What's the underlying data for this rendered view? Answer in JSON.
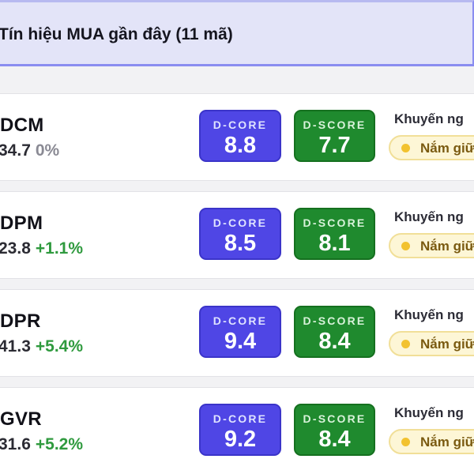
{
  "header": {
    "title": "Tín hiệu MUA gần đây (11 mã)"
  },
  "labels": {
    "dcore": "D-CORE",
    "dscore": "D-SCORE",
    "recommendation": "Khuyến ng",
    "hold": "Nắm giữ"
  },
  "stocks": [
    {
      "ticker": "DCM",
      "price": "34.7",
      "change": "0%",
      "change_type": "neutral",
      "dcore": "8.8",
      "dscore": "7.7"
    },
    {
      "ticker": "DPM",
      "price": "23.8",
      "change": "+1.1%",
      "change_type": "up",
      "dcore": "8.5",
      "dscore": "8.1"
    },
    {
      "ticker": "DPR",
      "price": "41.3",
      "change": "+5.4%",
      "change_type": "up",
      "dcore": "9.4",
      "dscore": "8.4"
    },
    {
      "ticker": "GVR",
      "price": "31.6",
      "change": "+5.2%",
      "change_type": "up",
      "dcore": "9.2",
      "dscore": "8.4"
    }
  ],
  "colors": {
    "dcore_bg": "#4f46e5",
    "dscore_bg": "#1f8a2e",
    "change_up": "#2f9a3e",
    "change_neutral": "#8a8a94",
    "hold_badge_bg": "#fdf6d6"
  }
}
